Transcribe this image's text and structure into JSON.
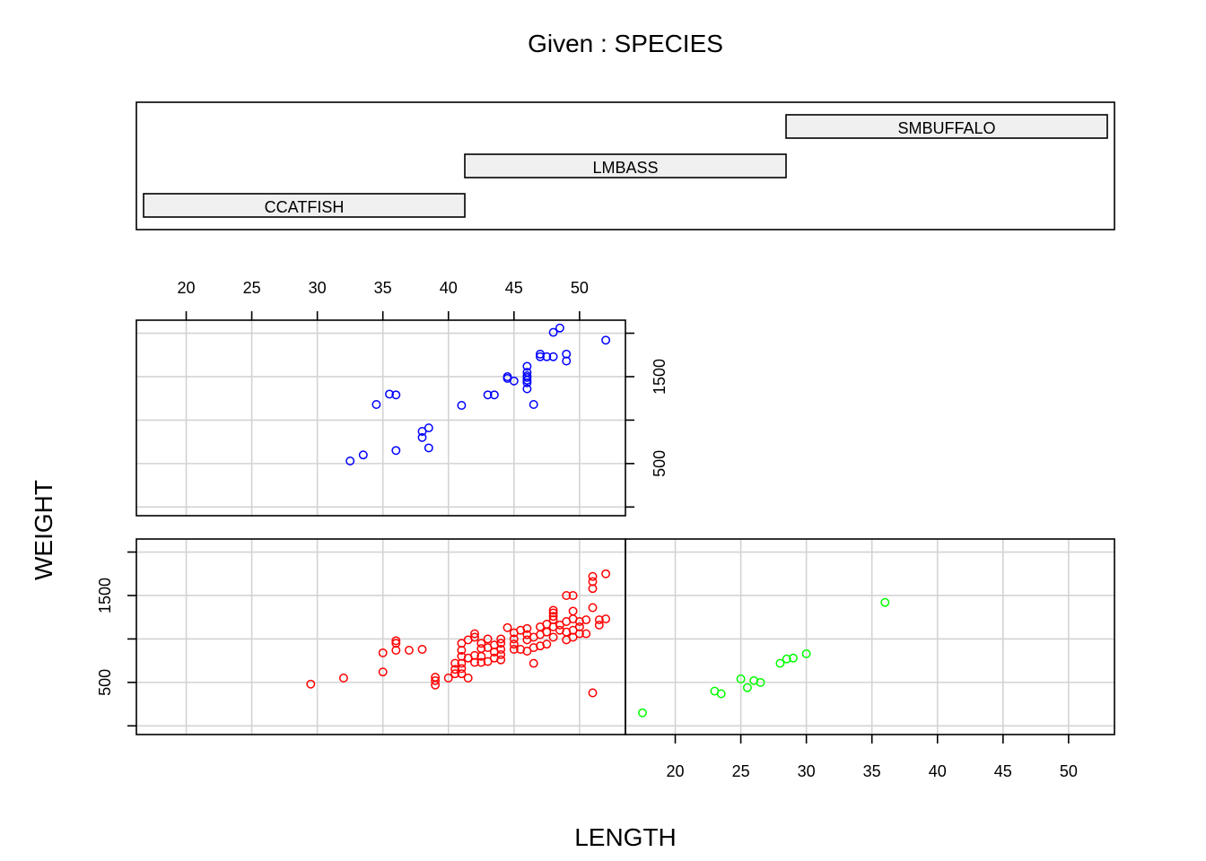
{
  "chart_data": {
    "type": "scatter",
    "title": "Given : SPECIES",
    "xlabel": "LENGTH",
    "ylabel": "WEIGHT",
    "xlim": [
      16.2,
      53.5
    ],
    "ylim": [
      -100,
      2150
    ],
    "x_ticks": [
      20,
      25,
      30,
      35,
      40,
      45,
      50
    ],
    "y_ticks": [
      0,
      500,
      1000,
      1500,
      2000
    ],
    "y_tick_labels": [
      "",
      "500",
      "",
      "1500",
      ""
    ],
    "x_tick_labels": [
      "20",
      "25",
      "30",
      "35",
      "40",
      "45",
      "50"
    ],
    "grid": true,
    "panels": [
      {
        "level": "CCATFISH",
        "color": "#ff0000",
        "points": [
          [
            29.5,
            480
          ],
          [
            32,
            550
          ],
          [
            35,
            620
          ],
          [
            35,
            840
          ],
          [
            36,
            870
          ],
          [
            36,
            950
          ],
          [
            36,
            980
          ],
          [
            37,
            870
          ],
          [
            38,
            880
          ],
          [
            39,
            470
          ],
          [
            39,
            520
          ],
          [
            39,
            560
          ],
          [
            40,
            550
          ],
          [
            40.5,
            600
          ],
          [
            40.5,
            650
          ],
          [
            40.5,
            720
          ],
          [
            41,
            600
          ],
          [
            41,
            660
          ],
          [
            41,
            720
          ],
          [
            41,
            800
          ],
          [
            41,
            870
          ],
          [
            41,
            950
          ],
          [
            41.5,
            550
          ],
          [
            41.5,
            780
          ],
          [
            41.5,
            990
          ],
          [
            42,
            730
          ],
          [
            42,
            810
          ],
          [
            42,
            1020
          ],
          [
            42,
            1060
          ],
          [
            42.5,
            730
          ],
          [
            42.5,
            800
          ],
          [
            42.5,
            890
          ],
          [
            42.5,
            950
          ],
          [
            43,
            740
          ],
          [
            43,
            900
          ],
          [
            43,
            1000
          ],
          [
            43.5,
            780
          ],
          [
            43.5,
            850
          ],
          [
            43.5,
            930
          ],
          [
            44,
            760
          ],
          [
            44,
            820
          ],
          [
            44,
            880
          ],
          [
            44,
            950
          ],
          [
            44,
            1000
          ],
          [
            44.5,
            1130
          ],
          [
            45,
            880
          ],
          [
            45,
            940
          ],
          [
            45,
            1000
          ],
          [
            45,
            1070
          ],
          [
            45.5,
            880
          ],
          [
            45.5,
            1100
          ],
          [
            46,
            860
          ],
          [
            46,
            990
          ],
          [
            46,
            1050
          ],
          [
            46,
            1120
          ],
          [
            46.5,
            720
          ],
          [
            46.5,
            900
          ],
          [
            46.5,
            1020
          ],
          [
            47,
            920
          ],
          [
            47,
            1050
          ],
          [
            47,
            1140
          ],
          [
            47.5,
            940
          ],
          [
            47.5,
            1080
          ],
          [
            47.5,
            1170
          ],
          [
            48,
            1020
          ],
          [
            48,
            1140
          ],
          [
            48,
            1220
          ],
          [
            48,
            1260
          ],
          [
            48,
            1300
          ],
          [
            48,
            1330
          ],
          [
            48.5,
            1100
          ],
          [
            48.5,
            1160
          ],
          [
            49,
            990
          ],
          [
            49,
            1080
          ],
          [
            49,
            1200
          ],
          [
            49,
            1500
          ],
          [
            49.5,
            1020
          ],
          [
            49.5,
            1100
          ],
          [
            49.5,
            1230
          ],
          [
            49.5,
            1320
          ],
          [
            49.5,
            1500
          ],
          [
            50,
            1060
          ],
          [
            50,
            1140
          ],
          [
            50,
            1200
          ],
          [
            50.5,
            1060
          ],
          [
            50.5,
            1220
          ],
          [
            51,
            380
          ],
          [
            51,
            1360
          ],
          [
            51,
            1580
          ],
          [
            51,
            1660
          ],
          [
            51,
            1720
          ],
          [
            51.5,
            1160
          ],
          [
            51.5,
            1220
          ],
          [
            52,
            1230
          ],
          [
            52,
            1750
          ]
        ]
      },
      {
        "level": "SMBUFFALO",
        "color": "#00ff00",
        "points": [
          [
            17.5,
            150
          ],
          [
            23,
            400
          ],
          [
            23.5,
            370
          ],
          [
            25,
            540
          ],
          [
            25.5,
            440
          ],
          [
            26,
            520
          ],
          [
            26.5,
            500
          ],
          [
            28,
            720
          ],
          [
            28.5,
            770
          ],
          [
            29,
            780
          ],
          [
            30,
            830
          ],
          [
            36,
            1420
          ]
        ]
      },
      {
        "level": "LMBASS",
        "color": "#0000ff",
        "points": [
          [
            32.5,
            530
          ],
          [
            33.5,
            600
          ],
          [
            34.5,
            1180
          ],
          [
            35.5,
            1300
          ],
          [
            36,
            1290
          ],
          [
            36,
            650
          ],
          [
            38,
            800
          ],
          [
            38,
            870
          ],
          [
            38.5,
            910
          ],
          [
            38.5,
            680
          ],
          [
            41,
            1170
          ],
          [
            43,
            1290
          ],
          [
            43.5,
            1290
          ],
          [
            44.5,
            1480
          ],
          [
            44.5,
            1500
          ],
          [
            45,
            1450
          ],
          [
            46,
            1360
          ],
          [
            46,
            1430
          ],
          [
            46,
            1460
          ],
          [
            46,
            1490
          ],
          [
            46,
            1510
          ],
          [
            46,
            1550
          ],
          [
            46,
            1620
          ],
          [
            46.5,
            1180
          ],
          [
            47,
            1730
          ],
          [
            47,
            1760
          ],
          [
            47.5,
            1730
          ],
          [
            48,
            1730
          ],
          [
            48,
            2010
          ],
          [
            48.5,
            2060
          ],
          [
            49,
            1680
          ],
          [
            49,
            1760
          ],
          [
            52,
            1920
          ]
        ]
      }
    ]
  }
}
